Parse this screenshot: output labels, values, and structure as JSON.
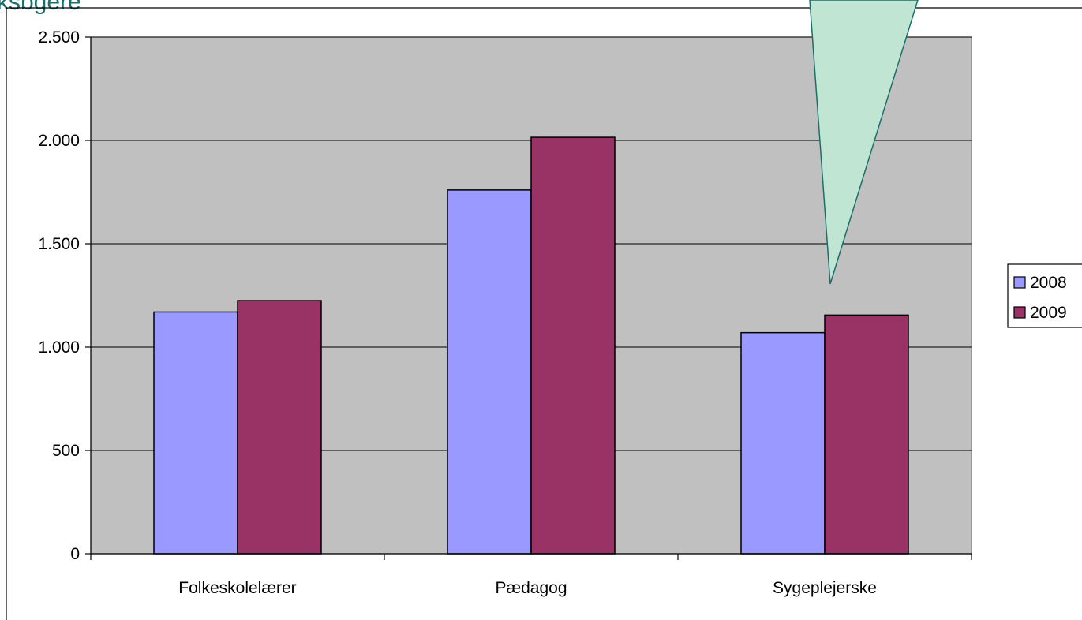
{
  "page_title_fragment": "ksbgere",
  "chart_data": {
    "type": "bar",
    "categories": [
      "Folkeskolelærer",
      "Pædagog",
      "Sygeplejerske"
    ],
    "series": [
      {
        "name": "2008",
        "values": [
          1170,
          1760,
          1070
        ],
        "color": "#9999ff"
      },
      {
        "name": "2009",
        "values": [
          1225,
          2015,
          1155
        ],
        "color": "#993366"
      }
    ],
    "ylim": [
      0,
      2500
    ],
    "yticks": [
      0,
      500,
      1000,
      1500,
      2000,
      2500
    ],
    "ytick_labels": [
      "0",
      "500",
      "1.000",
      "1.500",
      "2.000",
      "2.500"
    ],
    "xlabel": "",
    "ylabel": "",
    "grid": true,
    "plot_background": "#c0c0c0",
    "legend_position": "right",
    "callout_color": "#c0e6d3",
    "callout_border_color": "#1b6f6a"
  }
}
